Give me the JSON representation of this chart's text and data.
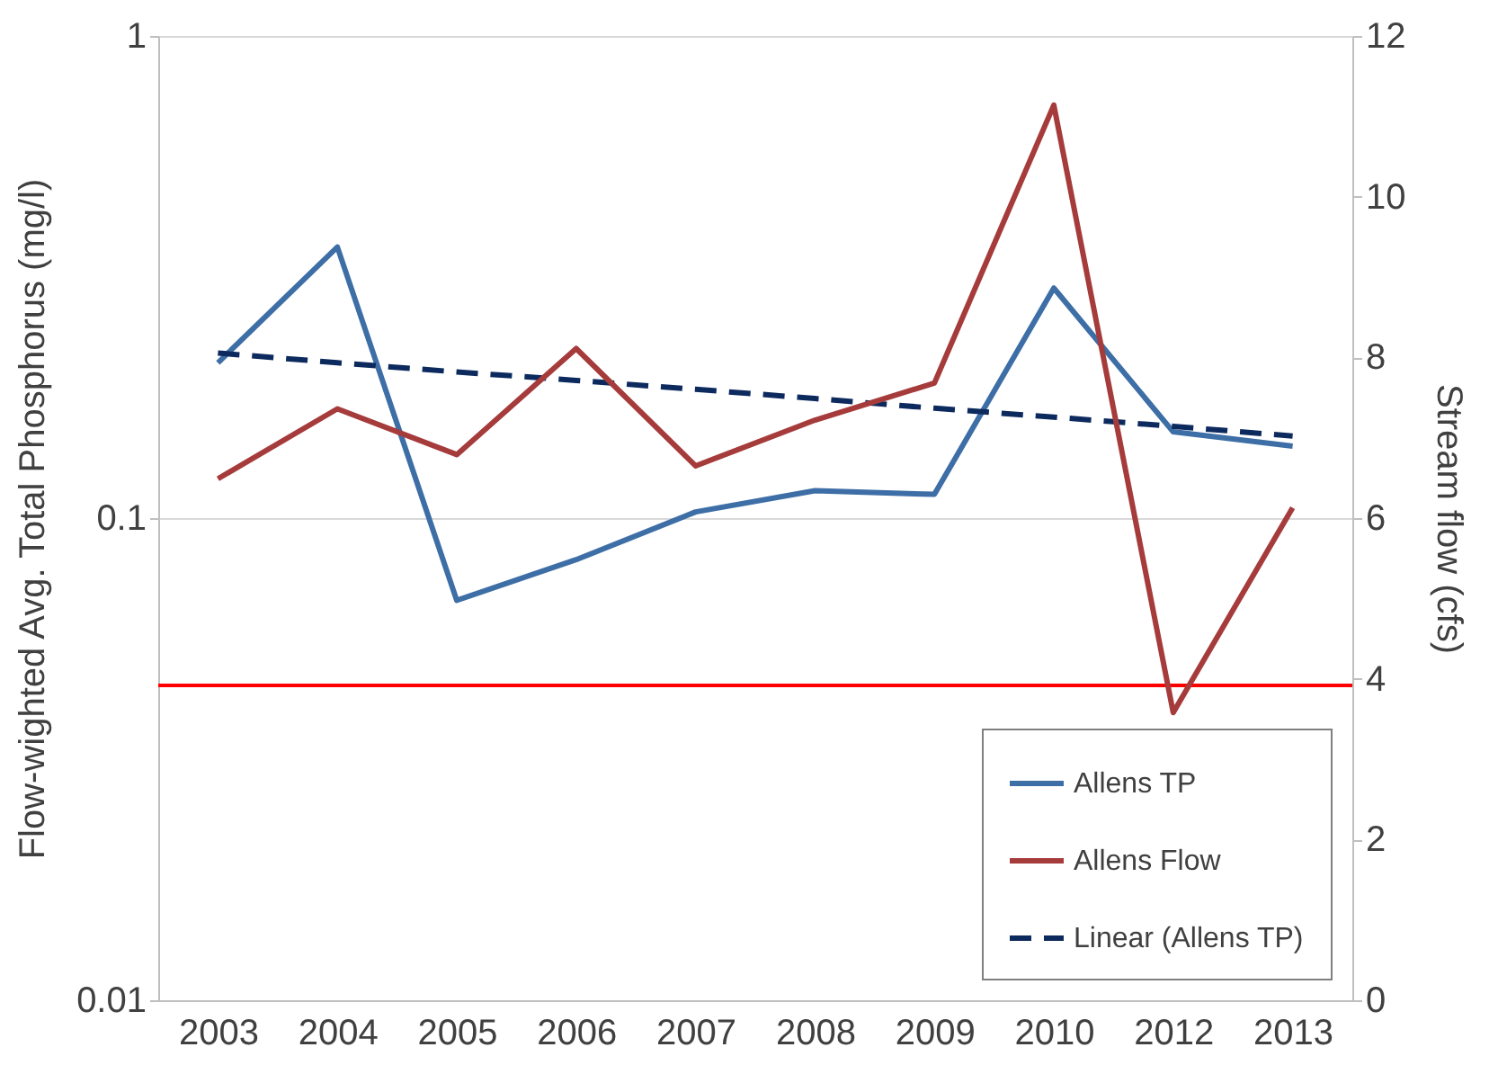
{
  "chart_data": {
    "type": "line",
    "categories": [
      "2003",
      "2004",
      "2005",
      "2006",
      "2007",
      "2008",
      "2009",
      "2010",
      "2012",
      "2013"
    ],
    "ylabel": "Flow-wighted Avg. Total Phosphorus (mg/l)",
    "y2label": "Stream flow (cfs)",
    "log": "y",
    "ylim": [
      0.01,
      1
    ],
    "yticks": [
      0.01,
      0.1,
      1
    ],
    "y2lim": [
      0,
      12
    ],
    "y2ticks": [
      0,
      2,
      4,
      6,
      8,
      10,
      12
    ],
    "grid": "y",
    "legend": "bottom right",
    "marker": "none",
    "series": [
      {
        "name": "Allens TP",
        "color": "#3d6ea6",
        "values": [
          0.21,
          0.365,
          0.0675,
          0.082,
          0.103,
          0.114,
          0.112,
          0.3,
          0.151,
          0.141
        ]
      },
      {
        "name": "Allens Flow",
        "color": "#a63b3b",
        "axis": "y2",
        "values": [
          6.49,
          7.36,
          6.79,
          8.11,
          6.65,
          7.22,
          7.68,
          11.14,
          3.58,
          6.13
        ]
      },
      {
        "name": "Linear (Allens TP)",
        "color": "#0d2a5e",
        "line_style": "dashed",
        "values": [
          0.22,
          0.21,
          0.201,
          0.193,
          0.185,
          0.177,
          0.169,
          0.162,
          0.155,
          0.148
        ]
      }
    ],
    "ref_lines": [
      {
        "axis": "y",
        "value": 0.045,
        "color": "#ff0000"
      }
    ]
  }
}
